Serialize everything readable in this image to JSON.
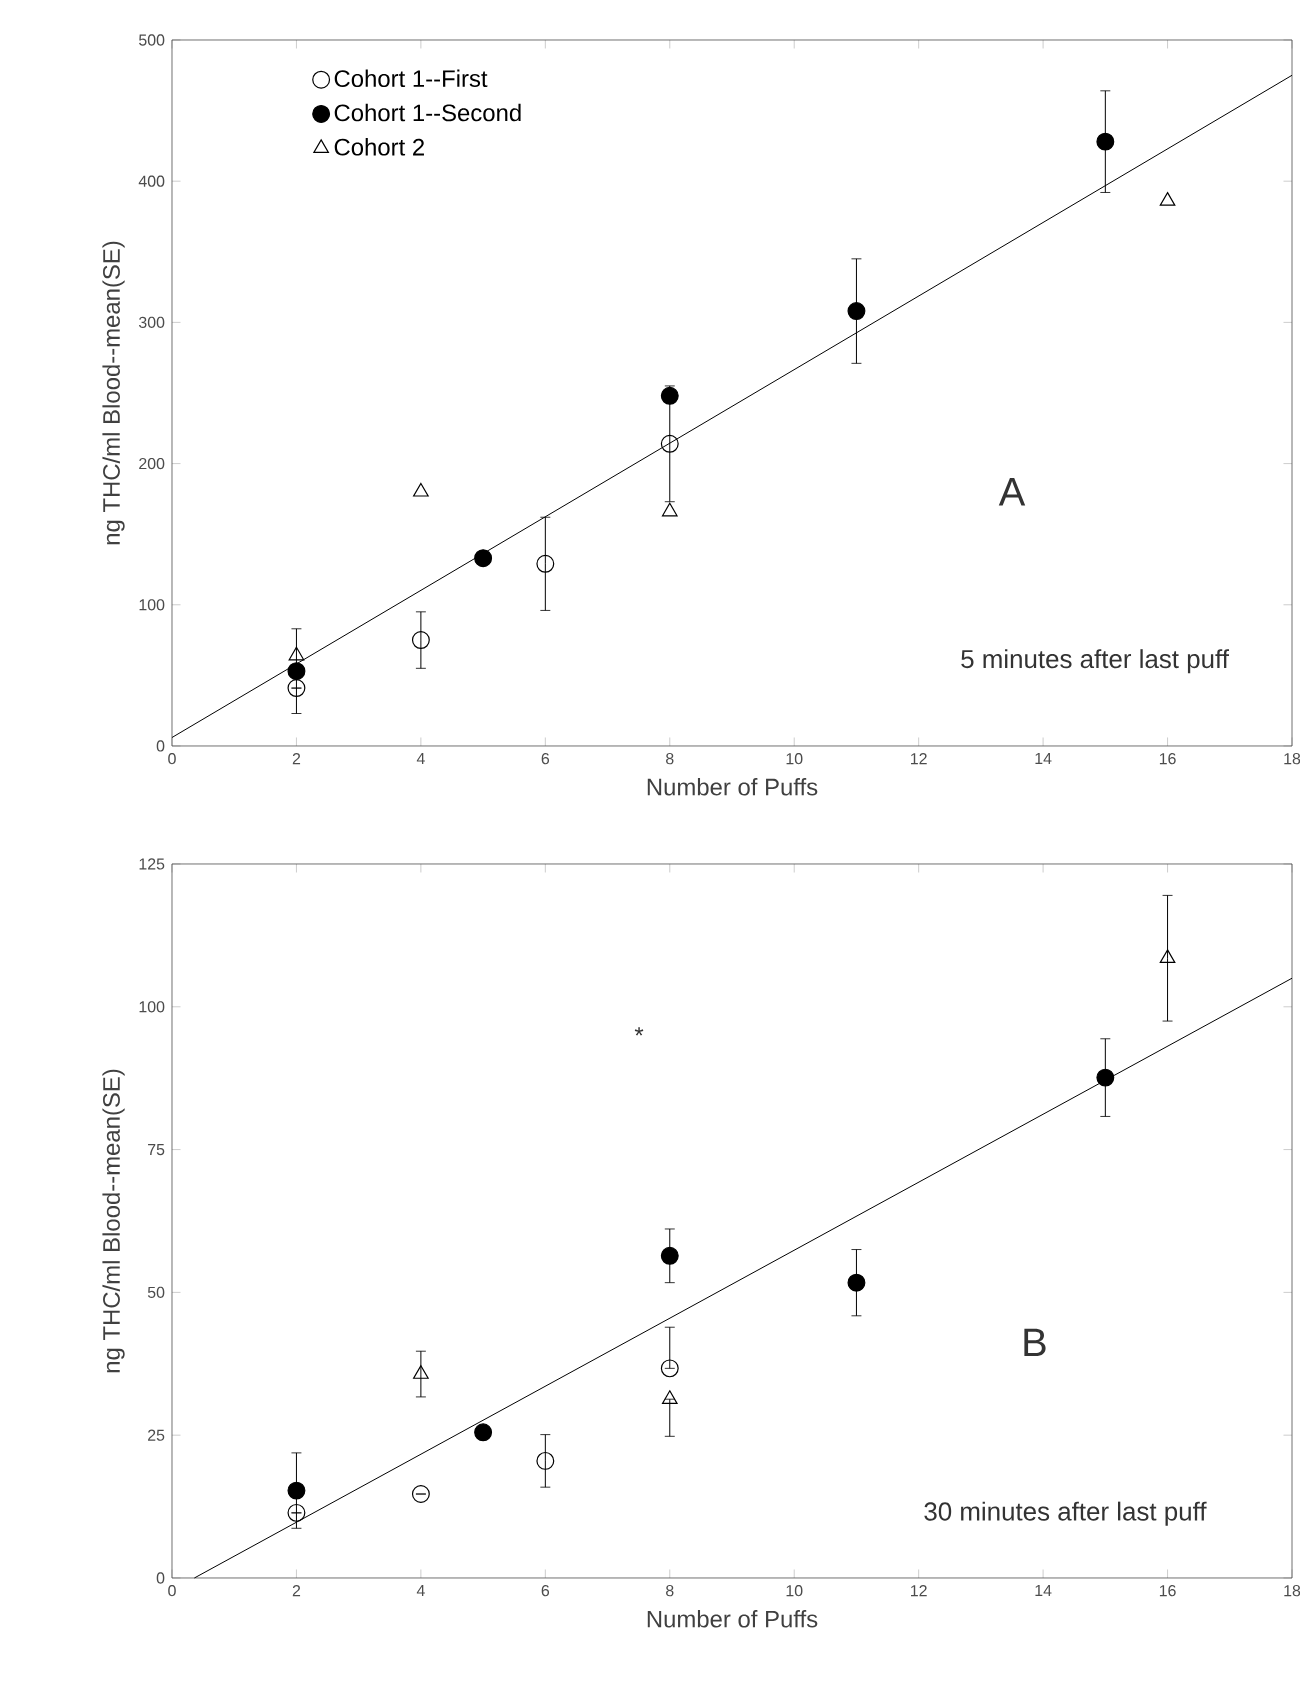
{
  "chart_data": [
    {
      "type": "scatter",
      "xlabel": "Number of Puffs",
      "ylabel": "ng THC/ml Blood--mean(SE)",
      "xlim": [
        0,
        18
      ],
      "xticks": [
        0,
        2,
        4,
        6,
        8,
        10,
        12,
        14,
        16,
        18
      ],
      "ylim": [
        0,
        500
      ],
      "yticks": [
        0,
        100,
        200,
        300,
        400,
        500
      ],
      "legend": "top left",
      "grid": false,
      "annotations": [
        "5 minutes after last puff",
        "A"
      ],
      "series": [
        {
          "name": "Cohort 1--First",
          "color": "#000000",
          "marker": "circle",
          "x": [
            2,
            4,
            6,
            8
          ],
          "values": [
            41,
            75,
            129,
            214
          ],
          "errors": [
            null,
            20,
            33,
            41
          ]
        },
        {
          "name": "Cohort 1--Second",
          "color": "#000000",
          "marker": "circle",
          "x": [
            2,
            5,
            8,
            11,
            15
          ],
          "values": [
            53,
            133,
            248,
            308,
            428
          ],
          "errors": [
            30,
            null,
            null,
            37,
            36
          ]
        },
        {
          "name": "Cohort 2",
          "color": "#000000",
          "marker": "triangle",
          "x": [
            2,
            4,
            8,
            16
          ],
          "values": [
            64,
            180,
            166,
            386
          ]
        },
        {
          "type": "line",
          "color": "#000000",
          "x": [
            0,
            18
          ],
          "values": [
            6,
            475
          ]
        }
      ]
    },
    {
      "type": "scatter",
      "xlabel": "Number of Puffs",
      "ylabel": "ng THC/ml Blood--mean(SE)",
      "xlim": [
        0,
        18
      ],
      "xticks": [
        0,
        2,
        4,
        6,
        8,
        10,
        12,
        14,
        16,
        18
      ],
      "ylim": [
        0,
        125
      ],
      "yticks": [
        0,
        25,
        50,
        75,
        100,
        125
      ],
      "grid": false,
      "annotations": [
        "30 minutes after last puff",
        "B",
        "*"
      ],
      "series": [
        {
          "color": "#000000",
          "marker": "circle",
          "x": [
            2,
            4,
            6,
            8
          ],
          "values": [
            11.4,
            14.7,
            20.5,
            36.7
          ],
          "errors": [
            null,
            null,
            4.6,
            [
              36.7,
              43.9
            ]
          ]
        },
        {
          "color": "#000000",
          "marker": "circle",
          "x": [
            2,
            5,
            8,
            11,
            15
          ],
          "values": [
            15.3,
            25.5,
            56.4,
            51.7,
            87.6
          ],
          "errors": [
            6.6,
            null,
            4.7,
            5.8,
            6.8
          ]
        },
        {
          "color": "#000000",
          "marker": "triangle",
          "x": [
            4,
            8,
            16
          ],
          "values": [
            35.7,
            31.3,
            108.5
          ],
          "errors": [
            4,
            [
              24.8,
              31.3
            ],
            11
          ]
        },
        {
          "type": "line",
          "color": "#000000",
          "x": [
            0.36,
            18
          ],
          "values": [
            0,
            105
          ]
        }
      ]
    }
  ]
}
